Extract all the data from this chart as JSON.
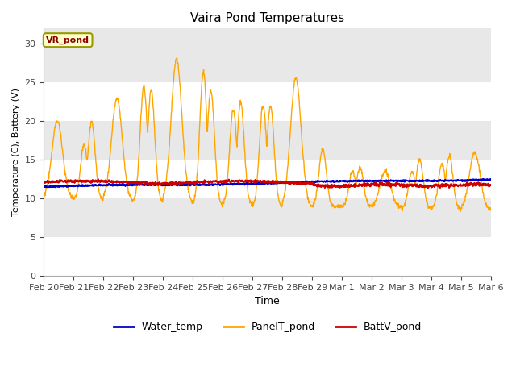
{
  "title": "Vaira Pond Temperatures",
  "xlabel": "Time",
  "ylabel": "Temperature (C), Battery (V)",
  "annotation": "VR_pond",
  "annotation_color": "#8B0000",
  "annotation_bg": "#FFFFCC",
  "annotation_border": "#999900",
  "ylim": [
    0,
    32
  ],
  "yticks": [
    0,
    5,
    10,
    15,
    20,
    25,
    30
  ],
  "bg_color": "#FFFFFF",
  "plot_bg_color": "#E8E8E8",
  "grid_color": "#FFFFFF",
  "line_water": "#0000CC",
  "line_panel": "#FFA500",
  "line_batt": "#CC0000",
  "legend_labels": [
    "Water_temp",
    "PanelT_pond",
    "BattV_pond"
  ],
  "xtick_labels": [
    "Feb 20",
    "Feb 21",
    "Feb 22",
    "Feb 23",
    "Feb 24",
    "Feb 25",
    "Feb 26",
    "Feb 27",
    "Feb 28",
    "Feb 29",
    "Mar 1",
    "Mar 2",
    "Mar 3",
    "Mar 4",
    "Mar 5",
    "Mar 6"
  ]
}
